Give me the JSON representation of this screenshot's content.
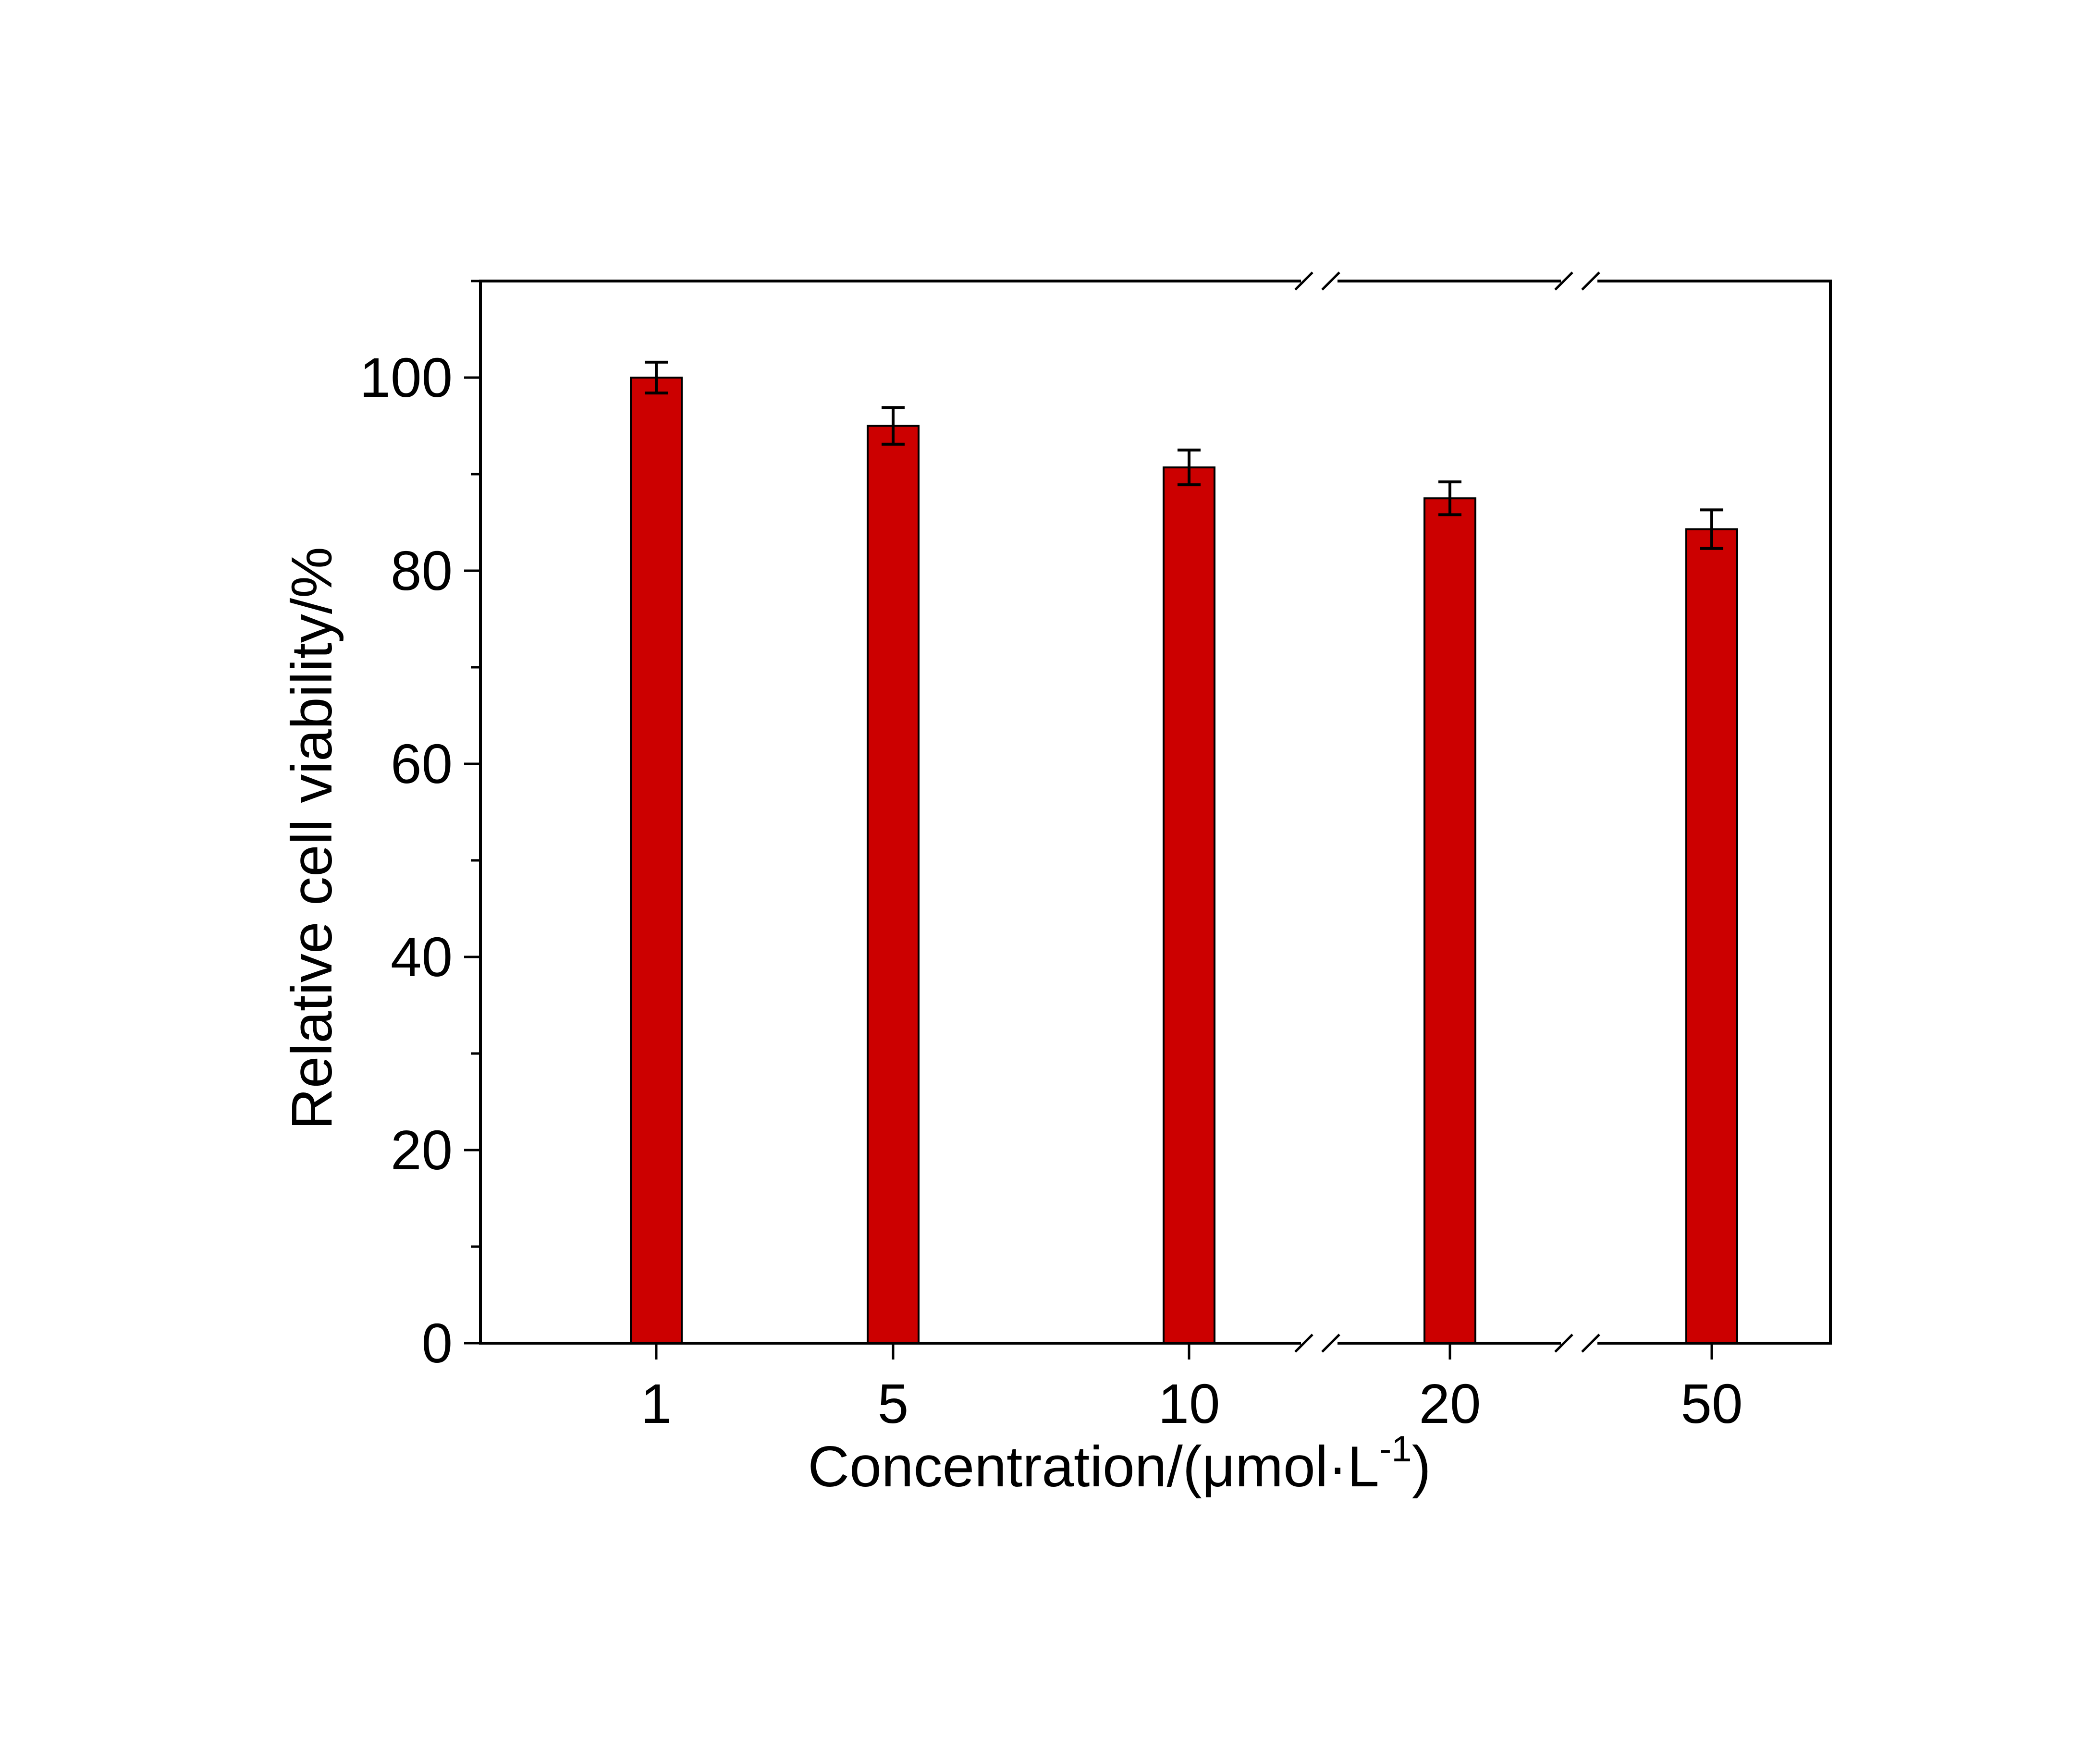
{
  "chart_data": {
    "type": "bar",
    "categories": [
      "1",
      "5",
      "10",
      "20",
      "50"
    ],
    "x": [
      1,
      5,
      10,
      20,
      50
    ],
    "values": [
      100,
      95,
      90.7,
      87.5,
      84.3
    ],
    "errors": [
      1.6,
      1.9,
      1.8,
      1.7,
      2.0
    ],
    "xlabel": "Concentration/(μmol·L",
    "xlabel_sup": "-1",
    "xlabel_suffix": ")",
    "ylabel": "Relative cell viability/%",
    "ylim": [
      0,
      110
    ],
    "yticks": [
      0,
      20,
      40,
      60,
      80,
      100
    ],
    "y_minor_step": 10,
    "x_axis_breaks": [
      "between 10 and 20",
      "between 20 and 50"
    ],
    "grid": false,
    "legend": "none",
    "bar_color": "#cc0000",
    "edge_color": "#000000"
  }
}
